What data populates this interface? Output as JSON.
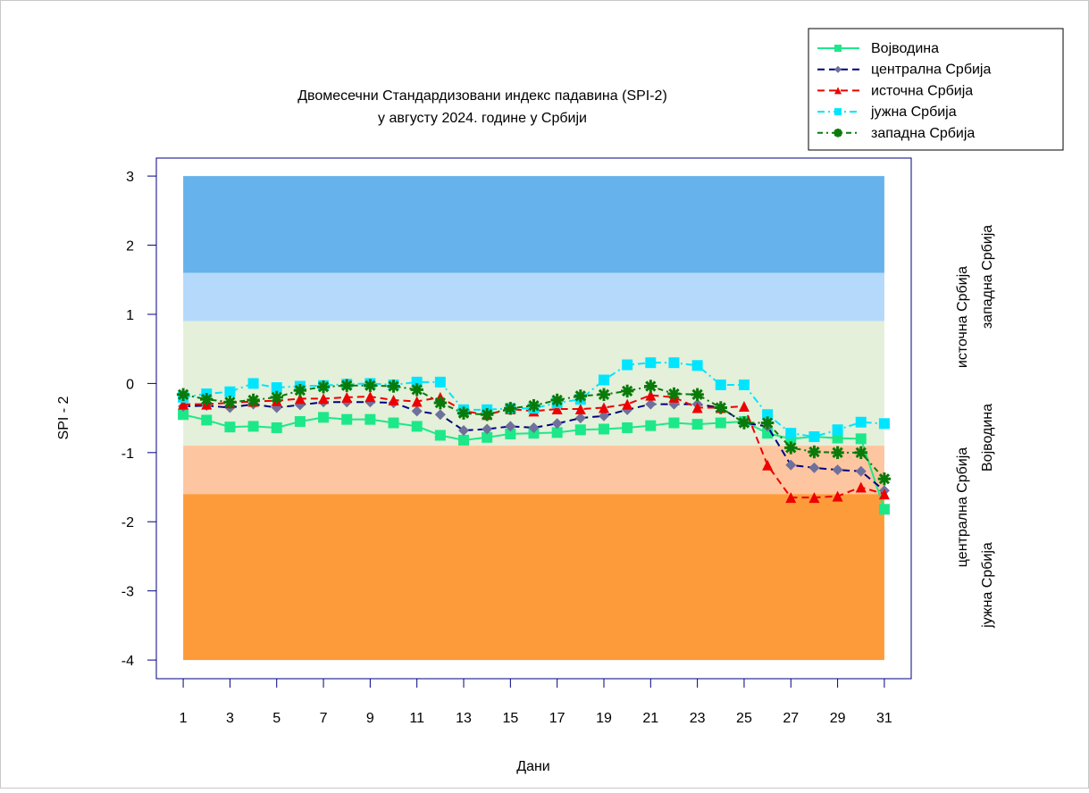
{
  "chart_data": {
    "type": "line",
    "title": "Двомесечни Стандардизовани индекс падавина (SPI-2)",
    "subtitle": "у августу 2024. године у Србији",
    "y_label": "SPI - 2",
    "x_label": "Дани",
    "x": [
      1,
      2,
      3,
      4,
      5,
      6,
      7,
      8,
      9,
      10,
      11,
      12,
      13,
      14,
      15,
      16,
      17,
      18,
      19,
      20,
      21,
      22,
      23,
      24,
      25,
      26,
      27,
      28,
      29,
      30,
      31
    ],
    "xlim": [
      -0.15,
      32.15
    ],
    "xticks": [
      1,
      3,
      5,
      7,
      9,
      11,
      13,
      15,
      17,
      19,
      21,
      23,
      25,
      27,
      29,
      31
    ],
    "ylim": [
      -4.27,
      3.26
    ],
    "yticks": [
      3,
      2,
      1,
      0,
      -1,
      -2,
      -3,
      -4
    ],
    "bands": [
      {
        "from": 3,
        "to": 1.6,
        "color": "#66b2ec"
      },
      {
        "from": 1.6,
        "to": 0.9,
        "color": "#b4d9fa"
      },
      {
        "from": 0.9,
        "to": -0.9,
        "color": "#e4f0d9"
      },
      {
        "from": -0.9,
        "to": -1.6,
        "color": "#fdc6a0"
      },
      {
        "from": -1.6,
        "to": -4,
        "color": "#fd9b3b"
      }
    ],
    "series": [
      {
        "name": "Војводина",
        "color": "#1de889",
        "marker_color": "#1de889",
        "marker": "square",
        "dash": "none",
        "values": [
          -0.45,
          -0.53,
          -0.63,
          -0.62,
          -0.64,
          -0.55,
          -0.49,
          -0.52,
          -0.52,
          -0.57,
          -0.62,
          -0.75,
          -0.82,
          -0.78,
          -0.73,
          -0.72,
          -0.71,
          -0.67,
          -0.66,
          -0.64,
          -0.61,
          -0.57,
          -0.59,
          -0.57,
          -0.55,
          -0.72,
          -0.8,
          -0.77,
          -0.79,
          -0.8,
          -1.82
        ]
      },
      {
        "name": "централна Србија",
        "color": "#000080",
        "marker_color": "#70709c",
        "marker": "diamond",
        "dash": "8 5",
        "values": [
          -0.33,
          -0.32,
          -0.35,
          -0.3,
          -0.35,
          -0.31,
          -0.27,
          -0.27,
          -0.27,
          -0.28,
          -0.4,
          -0.45,
          -0.68,
          -0.66,
          -0.62,
          -0.64,
          -0.58,
          -0.5,
          -0.47,
          -0.38,
          -0.3,
          -0.3,
          -0.3,
          -0.35,
          -0.57,
          -0.62,
          -1.18,
          -1.22,
          -1.25,
          -1.27,
          -1.55
        ]
      },
      {
        "name": "источна Србија",
        "color": "#ee0000",
        "marker_color": "#ee0000",
        "marker": "triangle",
        "dash": "8 5",
        "values": [
          -0.3,
          -0.3,
          -0.28,
          -0.26,
          -0.25,
          -0.22,
          -0.22,
          -0.2,
          -0.19,
          -0.24,
          -0.26,
          -0.2,
          -0.4,
          -0.45,
          -0.37,
          -0.4,
          -0.37,
          -0.37,
          -0.35,
          -0.3,
          -0.17,
          -0.2,
          -0.35,
          -0.35,
          -0.33,
          -1.18,
          -1.65,
          -1.65,
          -1.63,
          -1.5,
          -1.6
        ]
      },
      {
        "name": "јужна Србија",
        "color": "#00e5ff",
        "marker_color": "#00e5ff",
        "marker": "square",
        "dash": "8 4 2 4",
        "values": [
          -0.2,
          -0.15,
          -0.12,
          0.0,
          -0.06,
          -0.04,
          -0.03,
          -0.01,
          0.0,
          -0.02,
          0.02,
          0.02,
          -0.38,
          -0.38,
          -0.36,
          -0.36,
          -0.28,
          -0.23,
          0.05,
          0.27,
          0.3,
          0.3,
          0.26,
          -0.02,
          -0.02,
          -0.45,
          -0.72,
          -0.77,
          -0.67,
          -0.56,
          -0.58
        ]
      },
      {
        "name": "западна Србија",
        "color": "#0a7a0a",
        "marker_color": "#0a7a0a",
        "marker": "asterisk",
        "dash": "6 4 2 4",
        "values": [
          -0.16,
          -0.23,
          -0.27,
          -0.24,
          -0.2,
          -0.1,
          -0.05,
          -0.03,
          -0.03,
          -0.04,
          -0.09,
          -0.28,
          -0.43,
          -0.45,
          -0.36,
          -0.32,
          -0.24,
          -0.18,
          -0.16,
          -0.11,
          -0.04,
          -0.15,
          -0.16,
          -0.35,
          -0.57,
          -0.57,
          -0.93,
          -0.99,
          -1.0,
          -1.0,
          -1.38
        ]
      }
    ],
    "side_labels": [
      {
        "text": "источна Србија",
        "color": "#ee0000"
      },
      {
        "text": "западна Србија",
        "color": "#0a9a0a"
      },
      {
        "text": "централна Србија",
        "color": "#000080"
      },
      {
        "text": "Војводина",
        "color": "#1de889"
      },
      {
        "text": "јужна Србија",
        "color": "#00e5ff"
      }
    ]
  }
}
